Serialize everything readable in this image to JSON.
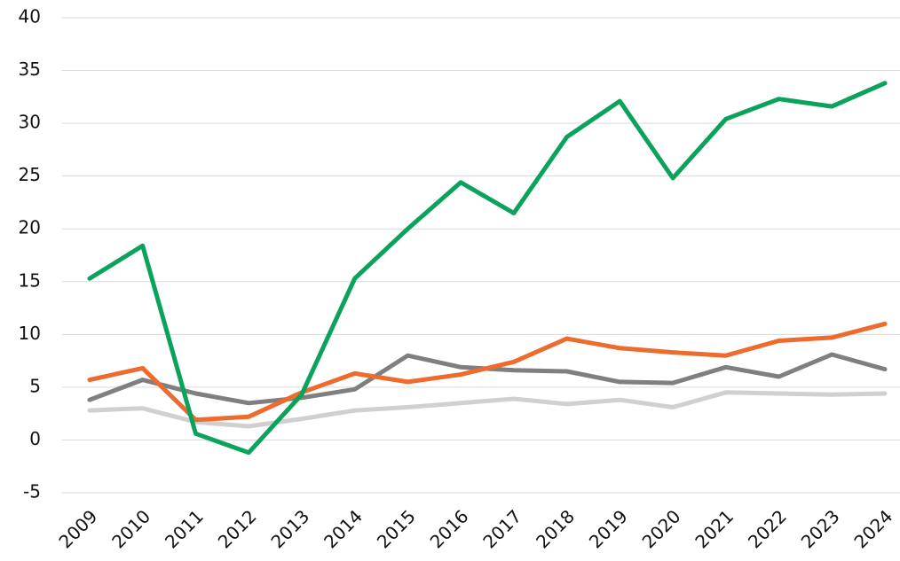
{
  "chart_data": {
    "type": "line",
    "categories": [
      "2009",
      "2010",
      "2011",
      "2012",
      "2013",
      "2014",
      "2015",
      "2016",
      "2017",
      "2018",
      "2019",
      "2020",
      "2021",
      "2022",
      "2023",
      "2024"
    ],
    "series": [
      {
        "color": "#d0d0d0",
        "values": [
          2.8,
          3.0,
          1.7,
          1.3,
          2.0,
          2.8,
          3.1,
          3.5,
          3.9,
          3.4,
          3.8,
          3.1,
          4.5,
          4.4,
          4.3,
          4.4
        ]
      },
      {
        "color": "#7f7f7f",
        "values": [
          3.8,
          5.7,
          4.4,
          3.5,
          4.0,
          4.8,
          8.0,
          6.9,
          6.6,
          6.5,
          5.5,
          5.4,
          6.9,
          6.0,
          8.1,
          6.7
        ]
      },
      {
        "color": "#ec6b2d",
        "values": [
          5.7,
          6.8,
          1.9,
          2.2,
          4.5,
          6.3,
          5.5,
          6.2,
          7.4,
          9.6,
          8.7,
          8.3,
          8.0,
          9.4,
          9.7,
          11.0
        ]
      },
      {
        "color": "#0ba35c",
        "values": [
          15.3,
          18.4,
          0.6,
          -1.2,
          4.3,
          15.3,
          20.0,
          24.4,
          21.5,
          28.7,
          32.1,
          24.8,
          30.4,
          32.3,
          31.6,
          33.8
        ]
      }
    ],
    "ylim": [
      -5,
      40
    ],
    "yticks": [
      -5,
      0,
      5,
      10,
      15,
      20,
      25,
      30,
      35,
      40
    ],
    "grid": true
  }
}
